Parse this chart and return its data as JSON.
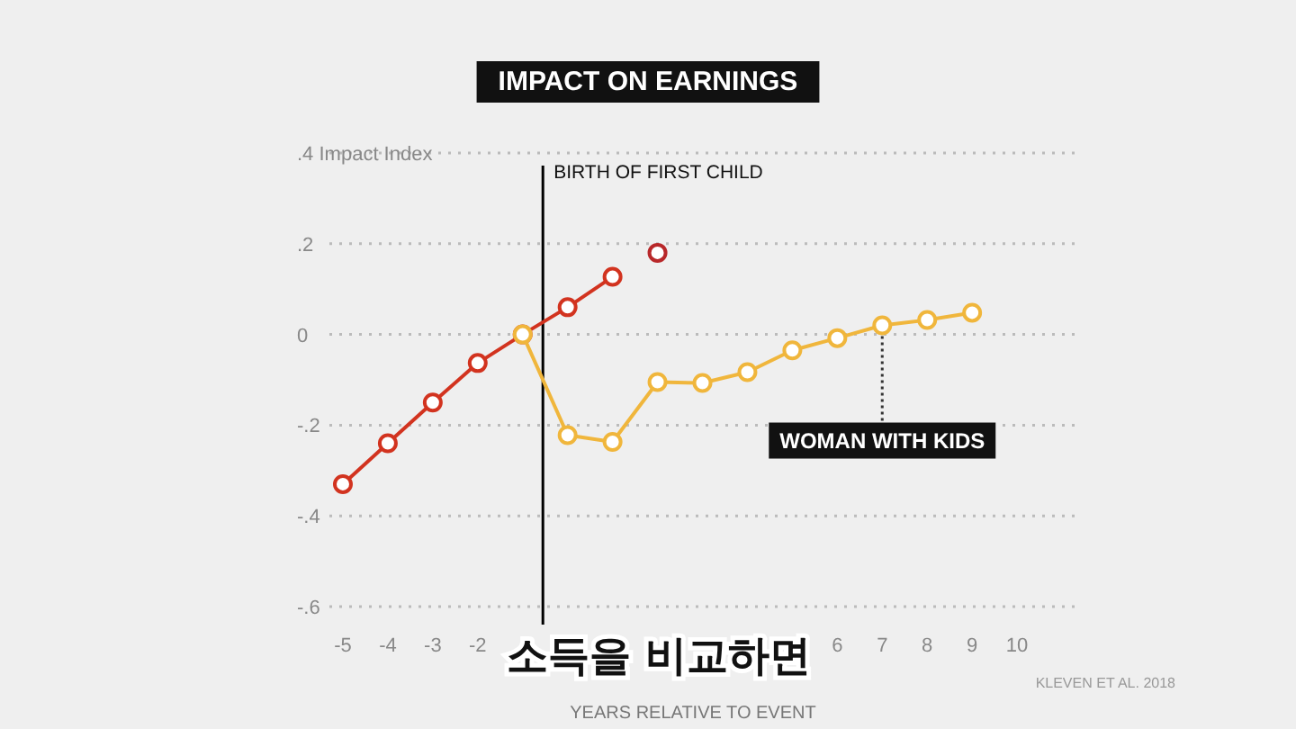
{
  "chart_data": {
    "type": "line",
    "title": "IMPACT ON EARNINGS",
    "xlabel": "YEARS RELATIVE TO EVENT",
    "ylabel": "Impact Index",
    "xlim": [
      -5.3,
      11.4
    ],
    "ylim": [
      -0.6,
      0.4
    ],
    "xticks": [
      -5,
      -4,
      -3,
      -2,
      6,
      7,
      8,
      9,
      10
    ],
    "yticks": [
      {
        "value": -0.6,
        "label": "-.6"
      },
      {
        "value": -0.4,
        "label": "-.4"
      },
      {
        "value": -0.2,
        "label": "-.2"
      },
      0,
      {
        "value": 0.2,
        "label": ".2"
      },
      {
        "value": 0.4,
        "label": ".4"
      }
    ],
    "grid": "y",
    "marker": "circle",
    "line_style": "solid",
    "series": [
      {
        "color": "#d2331f",
        "x": [
          -5,
          -4,
          -3,
          -2,
          -1,
          0,
          1
        ],
        "values": [
          -0.33,
          -0.24,
          -0.15,
          -0.063,
          0,
          0.06,
          0.127
        ]
      },
      {
        "type": "scatter",
        "color": "#b8282a",
        "x": [
          2
        ],
        "values": [
          0.18
        ]
      },
      {
        "name": "WOMAN WITH KIDS",
        "color": "#f0b63c",
        "x": [
          -1,
          0,
          1,
          2,
          3,
          4,
          5,
          6,
          7,
          8,
          9
        ],
        "values": [
          0,
          -0.222,
          -0.237,
          -0.105,
          -0.107,
          -0.083,
          -0.035,
          -0.008,
          0.02,
          0.032,
          0.048
        ]
      }
    ],
    "ref_lines": [
      {
        "axis": "x",
        "value": -0.55,
        "label": "BIRTH OF FIRST CHILD",
        "color": "#000000"
      }
    ],
    "annotations": [
      "KLEVEN ET AL. 2018",
      "소득을 비교하면"
    ]
  }
}
